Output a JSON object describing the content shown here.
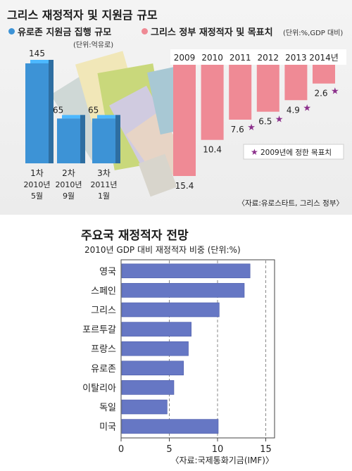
{
  "chart_data": [
    {
      "type": "bar",
      "title": "그리스 재정적자 및 지원금 규모",
      "subtitle": "유로존 지원금 집행 규모",
      "unit": "(단위:억유로)",
      "categories": [
        {
          "order": "1차",
          "year": "2010년",
          "month": "5월"
        },
        {
          "order": "2차",
          "year": "2010년",
          "month": "9월"
        },
        {
          "order": "3차",
          "year": "2011년",
          "month": "1월"
        }
      ],
      "values": [
        145,
        65,
        65
      ],
      "value_labels": [
        "145",
        "65",
        "65"
      ],
      "color": "#3d93d6"
    },
    {
      "type": "bar",
      "subtitle": "그리스 정부 재정적자 및 목표치",
      "unit": "(단위:%,GDP 대비)",
      "categories": [
        "2009",
        "2010",
        "2011",
        "2012",
        "2013",
        "2014년"
      ],
      "values": [
        15.4,
        10.4,
        7.6,
        6.5,
        4.9,
        2.6
      ],
      "value_labels": [
        "15.4",
        "10.4",
        "7.6",
        "6.5",
        "4.9",
        "2.6"
      ],
      "targets": [
        false,
        false,
        true,
        true,
        true,
        true
      ],
      "target_legend": "2009년에 정한 목표치",
      "color": "#ef8a95",
      "star_color": "#8b2f8b",
      "source": "〈자료:유로스타트, 그리스 정부〉"
    },
    {
      "type": "bar",
      "orientation": "horizontal",
      "title": "주요국 재정적자 전망",
      "subtitle": "2010년 GDP 대비 재정적자 비중 (단위:%)",
      "categories": [
        "영국",
        "스페인",
        "그리스",
        "포르투갈",
        "프랑스",
        "유로존",
        "이탈리아",
        "독일",
        "미국"
      ],
      "values": [
        13.3,
        12.7,
        10.1,
        7.2,
        6.9,
        6.4,
        5.4,
        4.7,
        10.0
      ],
      "xlim": [
        0,
        15
      ],
      "xticks": [
        "0",
        "5",
        "10",
        "15"
      ],
      "color": "#6677c4",
      "source": "〈자료:국제통화기금(IMF)〉"
    }
  ]
}
